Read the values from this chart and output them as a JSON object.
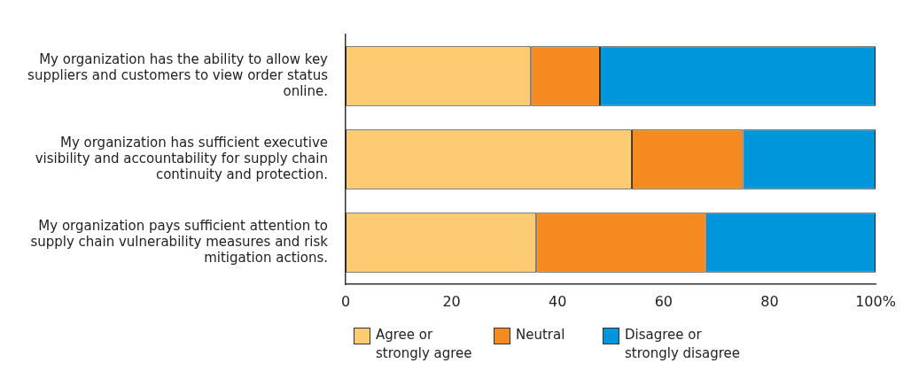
{
  "chart_data": {
    "type": "bar",
    "orientation": "horizontal",
    "stacked": true,
    "categories": [
      "My organization has the ability to allow key suppliers and customers to view order status online.",
      "My organization has sufficient executive visibility and accountability for supply chain continuity and protection.",
      "My organization pays sufficient attention to supply chain vulnerability measures and risk mitigation actions."
    ],
    "series": [
      {
        "name": "Agree or strongly agree",
        "color": "#fdcb72",
        "values": [
          35,
          54,
          36
        ]
      },
      {
        "name": "Neutral",
        "color": "#f58b20",
        "values": [
          13,
          21,
          32
        ]
      },
      {
        "name": "Disagree or strongly disagree",
        "color": "#0096db",
        "values": [
          52,
          25,
          32
        ]
      }
    ],
    "xlim": [
      0,
      100
    ],
    "xticks": [
      0,
      20,
      40,
      60,
      80,
      {
        "value": 100,
        "label": "100%"
      }
    ],
    "grid": false,
    "legend": "bottom"
  }
}
